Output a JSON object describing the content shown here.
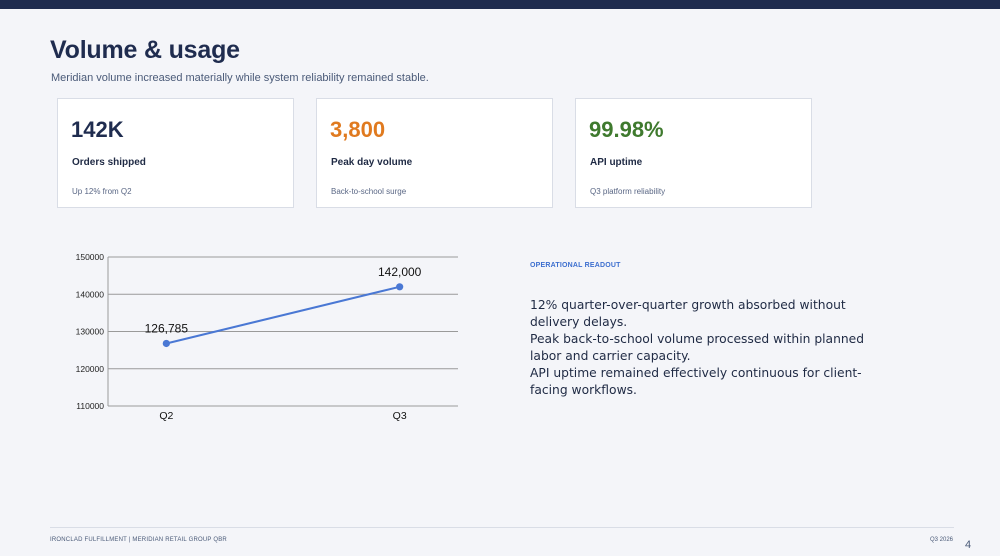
{
  "slide": {
    "title": "Volume & usage",
    "subtitle": "Meridian volume increased materially while system reliability remained stable."
  },
  "kpis": [
    {
      "value": "142K",
      "label": "Orders shipped",
      "note": "Up 12% from Q2",
      "color": "#1f2c4f"
    },
    {
      "value": "3,800",
      "label": "Peak day volume",
      "note": "Back-to-school surge",
      "color": "#e07a1f"
    },
    {
      "value": "99.98%",
      "label": "API uptime",
      "note": "Q3 platform reliability",
      "color": "#3f7a2e"
    }
  ],
  "chart_data": {
    "type": "line",
    "categories": [
      "Q2",
      "Q3"
    ],
    "values": [
      126785,
      142000
    ],
    "data_labels": [
      "126,785",
      "142,000"
    ],
    "ylim": [
      110000,
      150000
    ],
    "yticks": [
      "110000",
      "120000",
      "130000",
      "140000",
      "150000"
    ],
    "grid": true,
    "line_color": "#4a78d4"
  },
  "readout": {
    "heading": "OPERATIONAL READOUT",
    "lines": [
      "12% quarter-over-quarter growth absorbed without delivery delays.",
      "Peak back-to-school volume processed within planned labor and carrier capacity.",
      "API uptime remained effectively continuous for client-facing workflows."
    ]
  },
  "footer": {
    "left": "IRONCLAD FULFILLMENT  |  MERIDIAN RETAIL GROUP QBR",
    "right": "Q3 2026",
    "page": "4"
  }
}
